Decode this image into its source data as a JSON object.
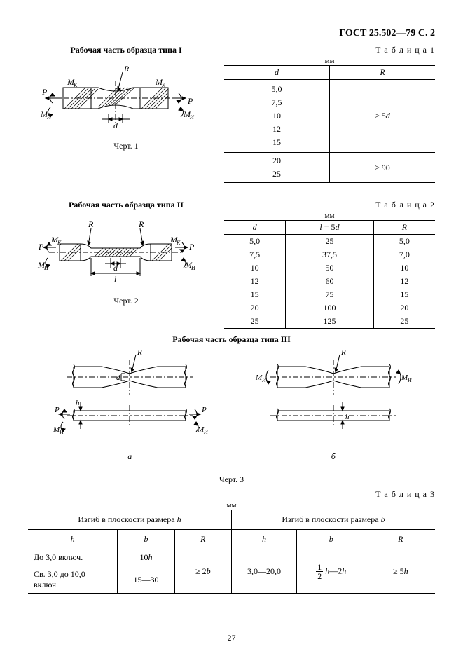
{
  "header": "ГОСТ 25.502—79 С. 2",
  "page_number": "27",
  "section1": {
    "caption": "Рабочая часть образца типа I",
    "fig_label": "Черт. 1",
    "table_label": "Т а б л и ц а   1",
    "unit": "мм",
    "head_d": "d",
    "head_R": "R",
    "group1": {
      "d": [
        "5,0",
        "7,5",
        "10",
        "12",
        "15"
      ],
      "R": "≥ 5d"
    },
    "group2": {
      "d": [
        "20",
        "25"
      ],
      "R": "≥ 90"
    },
    "diagram": {
      "P": "P",
      "Mk": "M",
      "Mk_sub": "К",
      "Mi": "M",
      "Mi_sub": "И",
      "d": "d",
      "R": "R",
      "bg": "#ffffff",
      "stroke": "#000000",
      "hatch_spacing": 5
    }
  },
  "section2": {
    "caption": "Рабочая часть образца типа II",
    "fig_label": "Черт. 2",
    "table_label": "Т а б л и ц а   2",
    "unit": "мм",
    "head_d": "d",
    "head_l": "l = 5d",
    "head_R": "R",
    "rows": [
      {
        "d": "5,0",
        "l": "25",
        "R": "5,0"
      },
      {
        "d": "7,5",
        "l": "37,5",
        "R": "7,0"
      },
      {
        "d": "10",
        "l": "50",
        "R": "10"
      },
      {
        "d": "12",
        "l": "60",
        "R": "12"
      },
      {
        "d": "15",
        "l": "75",
        "R": "15"
      },
      {
        "d": "20",
        "l": "100",
        "R": "20"
      },
      {
        "d": "25",
        "l": "125",
        "R": "25"
      }
    ],
    "diagram": {
      "P": "P",
      "Mk": "M",
      "Mk_sub": "К",
      "Mi": "M",
      "Mi_sub": "И",
      "d": "d",
      "l": "l",
      "R": "R"
    }
  },
  "section3": {
    "caption": "Рабочая часть образца типа III",
    "fig_label": "Черт. 3",
    "sub_a": "а",
    "sub_b": "б",
    "table_label": "Т а б л и ц а   3",
    "unit": "мм",
    "head_left": "Изгиб в плоскости размера h",
    "head_right": "Изгиб в плоскости размера b",
    "col_h": "h",
    "col_b": "b",
    "col_R": "R",
    "row1": {
      "h": "До 3,0 включ.",
      "b": "10h"
    },
    "row2": {
      "h": "Св. 3,0 до 10,0 включ.",
      "b": "15—30"
    },
    "R_left": "≥ 2b",
    "h_right": "3,0—20,0",
    "b_right_frac_num": "1",
    "b_right_frac_den": "2",
    "b_right_rest": " h—2h",
    "R_right": "≥ 5h",
    "diagram": {
      "P": "P",
      "Mi": "M",
      "Mi_sub": "И",
      "h": "h",
      "d": "d",
      "R": "R"
    }
  },
  "style": {
    "stroke": "#000000",
    "bg": "#ffffff",
    "fontsize": 12,
    "hatch_spacing": 5,
    "line_width": 1,
    "heavy_line_width": 1.5
  }
}
